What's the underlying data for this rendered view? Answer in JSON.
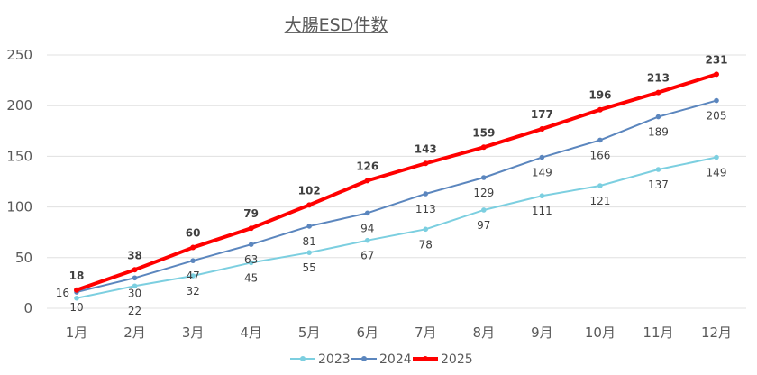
{
  "chart_data": {
    "type": "line",
    "title": "大腸ESD件数",
    "xlabel": "",
    "ylabel": "",
    "categories": [
      "1月",
      "2月",
      "3月",
      "4月",
      "5月",
      "6月",
      "7月",
      "8月",
      "9月",
      "10月",
      "11月",
      "12月"
    ],
    "ylim": [
      0,
      250
    ],
    "yticks": [
      0,
      50,
      100,
      150,
      200,
      250
    ],
    "grid": true,
    "legend": "bottom",
    "series": [
      {
        "name": "2023",
        "color": "#7CCFE0",
        "values": [
          10,
          22,
          32,
          45,
          55,
          67,
          78,
          97,
          111,
          121,
          137,
          149
        ]
      },
      {
        "name": "2024",
        "color": "#5B86BE",
        "values": [
          16,
          30,
          47,
          63,
          81,
          94,
          113,
          129,
          149,
          166,
          189,
          205
        ]
      },
      {
        "name": "2025",
        "color": "#FF0000",
        "values": [
          18,
          38,
          60,
          79,
          102,
          126,
          143,
          159,
          177,
          196,
          213,
          231
        ]
      }
    ]
  }
}
